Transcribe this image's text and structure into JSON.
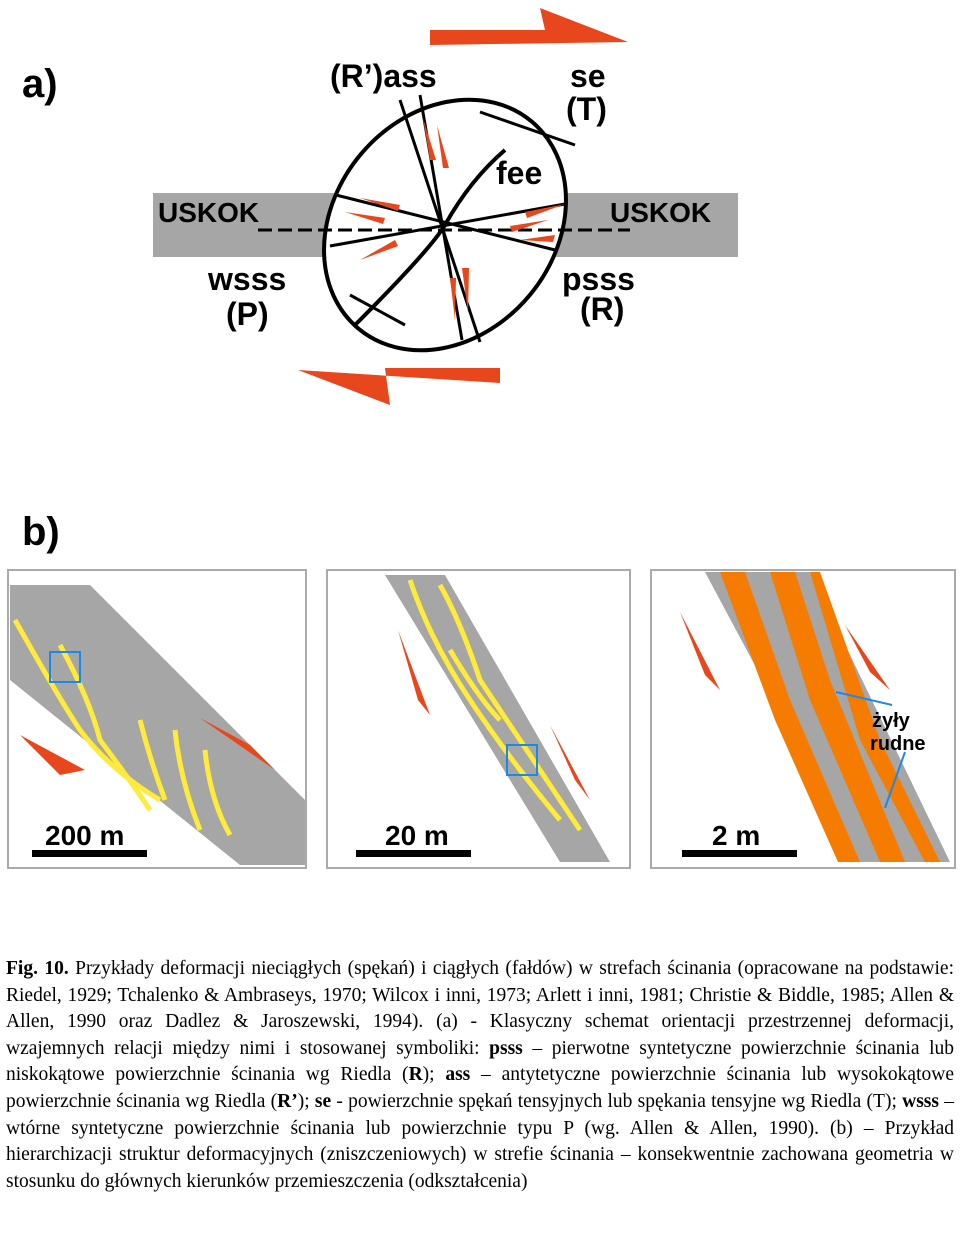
{
  "figure_a": {
    "label": "a)",
    "ass_label": "(R’)ass",
    "se_label": "se",
    "t_label": "(T)",
    "fee_label": "fee",
    "uskok_left": "USKOK",
    "uskok_right": "USKOK",
    "wsss_label": "wsss",
    "p_label": "(P)",
    "psss_label": "psss",
    "r_label": "(R)"
  },
  "figure_b": {
    "label": "b)",
    "panels": [
      {
        "scale": "200 m"
      },
      {
        "scale": "20 m"
      },
      {
        "scale": "2 m"
      }
    ],
    "vein_label_1": "żyły",
    "vein_label_2": "rudne"
  },
  "caption": {
    "runs": [
      {
        "text": "Fig. 10.",
        "bold": true
      },
      {
        "text": " Przykłady deformacji nieciągłych (spękań) i ciągłych (fałdów) w strefach ścinania (opracowane na podstawie: Riedel, 1929; Tchalenko & Ambraseys, 1970; Wilcox i inni, 1973; Arlett i inni, 1981; Christie & Biddle, 1985; Allen & Allen, 1990 oraz Dadlez  & Jaroszewski, 1994). (a) - Klasyczny schemat orientacji przestrzennej deformacji, wzajemnych relacji między nimi i stosowanej symboliki: ",
        "bold": false
      },
      {
        "text": "psss",
        "bold": true
      },
      {
        "text": " – pierwotne syntetyczne powierzchnie ścinania lub niskokątowe powierzchnie ścinania wg Riedla (",
        "bold": false
      },
      {
        "text": "R",
        "bold": true
      },
      {
        "text": "); ",
        "bold": false
      },
      {
        "text": "ass",
        "bold": true
      },
      {
        "text": " – antytetyczne powierzchnie ścinania lub wysokokątowe powierzchnie ścinania wg Riedla (",
        "bold": false
      },
      {
        "text": "R’",
        "bold": true
      },
      {
        "text": "); ",
        "bold": false
      },
      {
        "text": "se",
        "bold": true
      },
      {
        "text": " - powierzchnie spękań tensyjnych lub spękania tensyjne wg Riedla (T); ",
        "bold": false
      },
      {
        "text": "wsss",
        "bold": true
      },
      {
        "text": " – wtórne syntetyczne powierzchnie ścinania lub powierzchnie typu P (wg. Allen & Allen, 1990). (b) – Przykład hierarchizacji struktur deformacyjnych (zniszczeniowych) w strefie ścinania – konsekwentnie zachowana geometria w stosunku do głównych kierunków przemieszczenia (odkształcenia)",
        "bold": false
      }
    ]
  }
}
